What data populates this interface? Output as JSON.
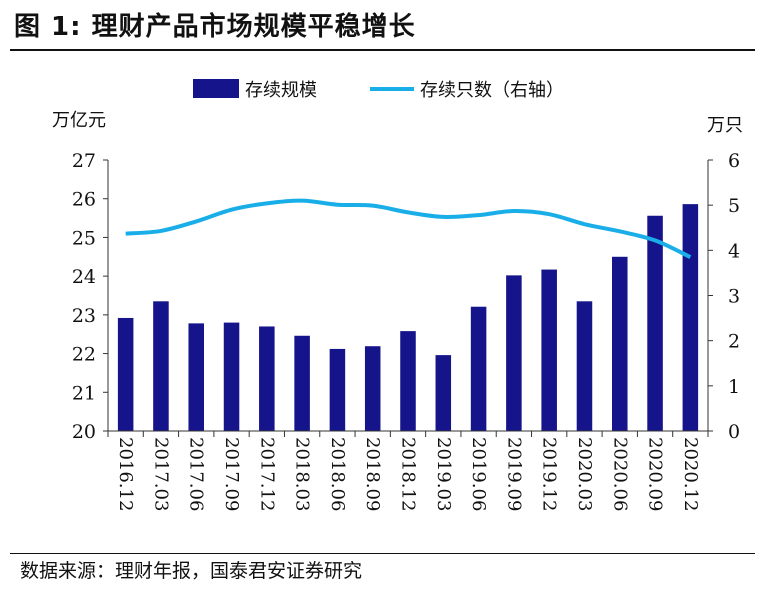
{
  "header": {
    "title": "图 1:  理财产品市场规模平稳增长"
  },
  "footer": {
    "source": "数据来源：理财年报，国泰君安证券研究"
  },
  "chart_data": {
    "type": "bar",
    "categories": [
      "2016.12",
      "2017.03",
      "2017.06",
      "2017.09",
      "2017.12",
      "2018.03",
      "2018.06",
      "2018.09",
      "2018.12",
      "2019.03",
      "2019.06",
      "2019.09",
      "2019.12",
      "2020.03",
      "2020.06",
      "2020.09",
      "2020.12"
    ],
    "series": [
      {
        "name": "存续规模",
        "type": "bar",
        "axis": "left",
        "color": "#15148a",
        "values": [
          22.92,
          23.35,
          22.78,
          22.8,
          22.7,
          22.46,
          22.12,
          22.19,
          22.58,
          21.96,
          23.21,
          24.02,
          24.17,
          23.35,
          24.5,
          25.56,
          25.86
        ]
      },
      {
        "name": "存续只数（右轴）",
        "type": "line",
        "axis": "right",
        "color": "#19aee8",
        "values": [
          4.37,
          4.43,
          4.64,
          4.9,
          5.04,
          5.1,
          5.01,
          4.99,
          4.84,
          4.74,
          4.78,
          4.87,
          4.8,
          4.58,
          4.42,
          4.22,
          3.85
        ]
      }
    ],
    "y_left": {
      "label": "万亿元",
      "min": 20,
      "max": 27,
      "ticks": [
        "20",
        "21",
        "22",
        "23",
        "24",
        "25",
        "26",
        "27"
      ]
    },
    "y_right": {
      "label": "万只",
      "min": 0,
      "max": 6,
      "ticks": [
        "0",
        "1",
        "2",
        "3",
        "4",
        "5",
        "6"
      ]
    },
    "legend": [
      "存续规模",
      "存续只数（右轴）"
    ],
    "legend_position": "top-center"
  }
}
